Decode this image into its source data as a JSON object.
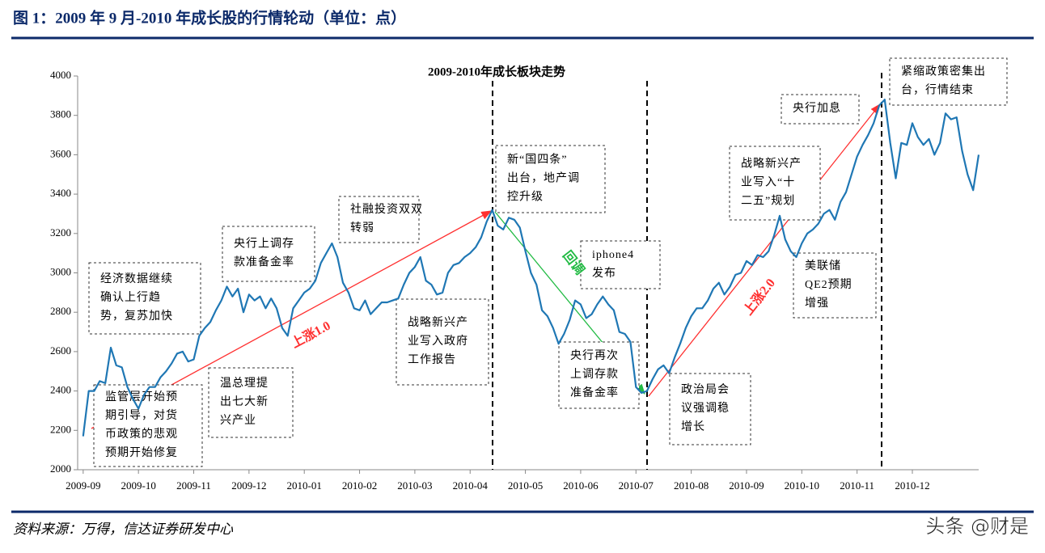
{
  "header": {
    "title": "图 1：2009 年 9 月-2010 年成长股的行情轮动（单位：点）"
  },
  "chart_data": {
    "type": "line",
    "title": "2009-2010年成长板块走势",
    "color": "#1f77b4",
    "x": [
      0,
      0.1,
      0.2,
      0.3,
      0.4,
      0.5,
      0.6,
      0.7,
      0.8,
      0.9,
      1,
      1.1,
      1.2,
      1.3,
      1.4,
      1.5,
      1.6,
      1.7,
      1.8,
      1.9,
      2,
      2.1,
      2.2,
      2.3,
      2.4,
      2.5,
      2.6,
      2.7,
      2.8,
      2.9,
      3,
      3.1,
      3.2,
      3.3,
      3.4,
      3.5,
      3.6,
      3.7,
      3.8,
      3.9,
      4,
      4.1,
      4.2,
      4.3,
      4.4,
      4.5,
      4.6,
      4.7,
      4.8,
      4.9,
      5,
      5.1,
      5.2,
      5.3,
      5.4,
      5.5,
      5.6,
      5.7,
      5.8,
      5.9,
      6,
      6.1,
      6.2,
      6.3,
      6.4,
      6.5,
      6.6,
      6.7,
      6.8,
      6.9,
      7,
      7.1,
      7.2,
      7.3,
      7.4,
      7.5,
      7.6,
      7.7,
      7.8,
      7.9,
      8,
      8.1,
      8.2,
      8.3,
      8.4,
      8.5,
      8.6,
      8.7,
      8.8,
      8.9,
      9,
      9.1,
      9.2,
      9.3,
      9.4,
      9.5,
      9.6,
      9.7,
      9.8,
      9.9,
      10,
      10.1,
      10.2,
      10.3,
      10.4,
      10.5,
      10.6,
      10.7,
      10.8,
      10.9,
      11,
      11.1,
      11.2,
      11.3,
      11.4,
      11.5,
      11.6,
      11.7,
      11.8,
      11.9,
      12,
      12.1,
      12.2,
      12.3,
      12.4,
      12.5,
      12.6,
      12.7,
      12.8,
      12.9,
      13,
      13.1,
      13.2,
      13.3,
      13.4,
      13.5,
      13.6,
      13.7,
      13.8,
      13.9,
      14,
      14.1,
      14.2,
      14.3,
      14.4,
      14.5,
      14.6,
      14.7,
      14.8,
      14.9,
      15,
      15.1,
      15.2,
      15.3,
      15.4,
      15.5,
      15.6,
      15.7,
      15.8,
      15.9,
      16,
      16.1,
      16.2
    ],
    "values": [
      2170,
      2400,
      2400,
      2450,
      2440,
      2620,
      2530,
      2520,
      2420,
      2360,
      2310,
      2380,
      2420,
      2420,
      2470,
      2500,
      2540,
      2590,
      2600,
      2550,
      2560,
      2680,
      2720,
      2750,
      2810,
      2860,
      2930,
      2880,
      2920,
      2800,
      2890,
      2860,
      2880,
      2820,
      2870,
      2820,
      2720,
      2680,
      2820,
      2860,
      2900,
      2920,
      2960,
      3050,
      3100,
      3150,
      3080,
      2950,
      2900,
      2820,
      2810,
      2860,
      2790,
      2820,
      2850,
      2850,
      2860,
      2870,
      2940,
      3000,
      3030,
      3080,
      2960,
      2940,
      2890,
      2900,
      3000,
      3040,
      3050,
      3080,
      3100,
      3130,
      3180,
      3260,
      3320,
      3240,
      3220,
      3280,
      3270,
      3230,
      3110,
      3000,
      2940,
      2810,
      2780,
      2720,
      2640,
      2690,
      2760,
      2860,
      2840,
      2770,
      2790,
      2840,
      2880,
      2840,
      2810,
      2700,
      2690,
      2650,
      2420,
      2390,
      2400,
      2460,
      2510,
      2530,
      2490,
      2570,
      2640,
      2720,
      2780,
      2820,
      2820,
      2860,
      2920,
      2950,
      2890,
      2930,
      2990,
      3000,
      3060,
      3040,
      3090,
      3080,
      3110,
      3190,
      3290,
      3170,
      3110,
      3080,
      3150,
      3200,
      3220,
      3250,
      3300,
      3320,
      3270,
      3360,
      3410,
      3500,
      3590,
      3650,
      3700,
      3760,
      3850,
      3880,
      3660,
      3480,
      3660,
      3650,
      3760,
      3690,
      3650,
      3680,
      3600,
      3660,
      3810,
      3780,
      3790,
      3620,
      3500,
      3420,
      3600
    ],
    "xlim": [
      -0.1,
      16.2
    ],
    "xticks": [
      {
        "value": 0,
        "label": "2009-09"
      },
      {
        "value": 1,
        "label": "2009-10"
      },
      {
        "value": 2,
        "label": "2009-11"
      },
      {
        "value": 3,
        "label": "2009-12"
      },
      {
        "value": 4,
        "label": "2010-01"
      },
      {
        "value": 5,
        "label": "2010-02"
      },
      {
        "value": 6,
        "label": "2010-03"
      },
      {
        "value": 7,
        "label": "2010-04"
      },
      {
        "value": 8,
        "label": "2010-05"
      },
      {
        "value": 9,
        "label": "2010-06"
      },
      {
        "value": 10,
        "label": "2010-07"
      },
      {
        "value": 11,
        "label": "2010-08"
      },
      {
        "value": 12,
        "label": "2010-09"
      },
      {
        "value": 13,
        "label": "2010-10"
      },
      {
        "value": 14,
        "label": "2010-11"
      },
      {
        "value": 15,
        "label": "2010-12"
      }
    ],
    "ylim": [
      2000,
      4000
    ],
    "yticks": [
      2000,
      2200,
      2400,
      2600,
      2800,
      3000,
      3200,
      3400,
      3600,
      3800,
      4000
    ],
    "annotations": [
      {
        "lines": [
          "经济数据继续",
          "确认上行趋",
          "势，复苏加快"
        ]
      },
      {
        "lines": [
          "监管层开始预",
          "期引导，对货",
          "币政策的悲观",
          "预期开始修复"
        ]
      },
      {
        "lines": [
          "温总理提",
          "出七大新",
          "兴产业"
        ]
      },
      {
        "lines": [
          "央行上调存",
          "款准备金率"
        ]
      },
      {
        "lines": [
          "社融投资双双",
          "转弱"
        ]
      },
      {
        "lines": [
          "战略新兴产",
          "业写入政府",
          "工作报告"
        ]
      },
      {
        "lines": [
          "新“国四条”",
          "出台，地产调",
          "控升级"
        ]
      },
      {
        "lines": [
          "iphone4",
          "发布"
        ]
      },
      {
        "lines": [
          "央行再次",
          "上调存款",
          "准备金率"
        ]
      },
      {
        "lines": [
          "政治局会",
          "议强调稳",
          "增长"
        ]
      },
      {
        "lines": [
          "战略新兴产",
          "业写入“十",
          "二五”规划"
        ]
      },
      {
        "lines": [
          "美联储",
          "QE2预期",
          "增强"
        ]
      },
      {
        "lines": [
          "央行加息"
        ]
      },
      {
        "lines": [
          "紧缩政策密集出",
          "台，行情结束"
        ]
      }
    ],
    "arrow_labels": [
      "上涨1.0",
      "回调",
      "上涨2.0"
    ]
  },
  "footer": {
    "source": "资料来源：万得，信达证券研发中心",
    "watermark": "头条 @财是"
  }
}
